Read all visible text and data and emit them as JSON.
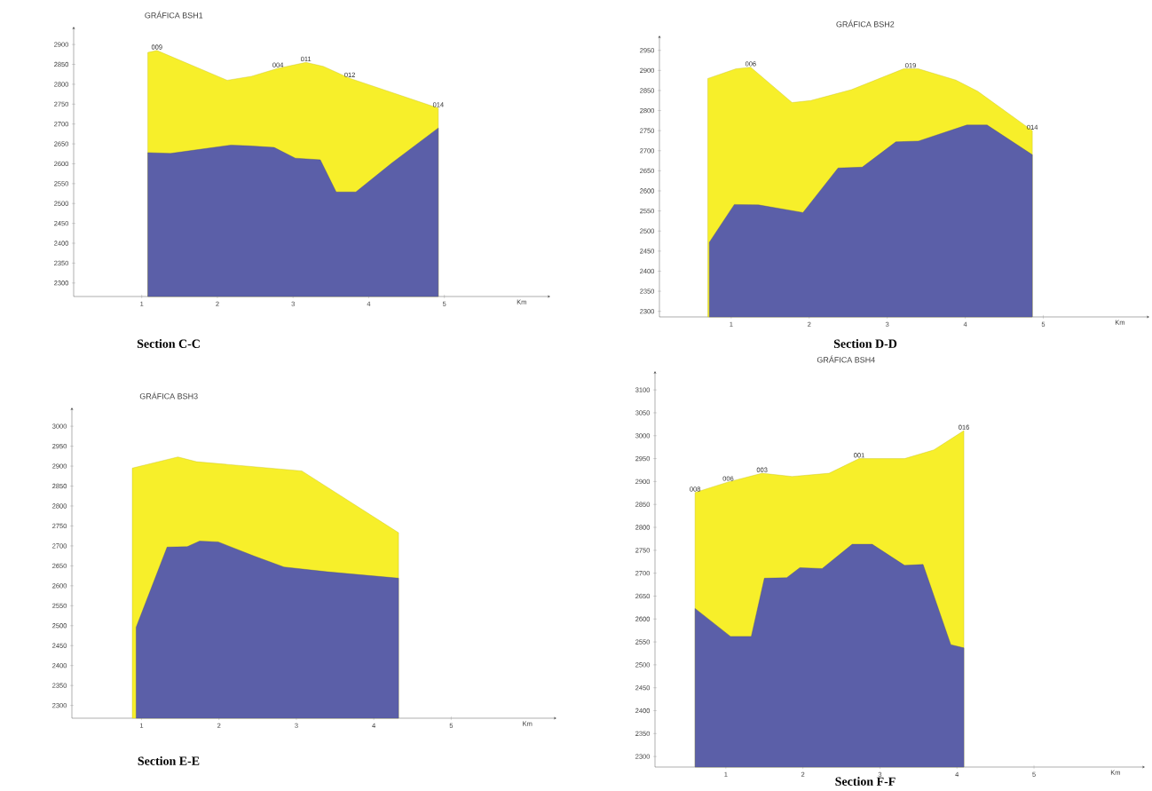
{
  "chart_data": [
    {
      "type": "area",
      "title": "GRÁFICA BSH1",
      "xlabel": "Km",
      "xlim": [
        0.1,
        6.4
      ],
      "ylim": [
        2266,
        2945
      ],
      "xticks": [
        1,
        2,
        3,
        4,
        5
      ],
      "yticks": [
        2300,
        2350,
        2400,
        2450,
        2500,
        2550,
        2600,
        2650,
        2700,
        2750,
        2800,
        2850,
        2900
      ],
      "series": [
        {
          "color": "#f7ef2a",
          "x": [
            1.08,
            1.2,
            2.13,
            2.45,
            2.8,
            3.17,
            3.4,
            3.75,
            4.92
          ],
          "values": [
            2880,
            2885,
            2810,
            2820,
            2840,
            2855,
            2845,
            2815,
            2740
          ]
        },
        {
          "color": "#5b5fa8",
          "x": [
            1.08,
            1.38,
            2.18,
            2.42,
            2.75,
            3.03,
            3.36,
            3.57,
            3.83,
            4.3,
            4.92
          ],
          "values": [
            2628,
            2626,
            2647,
            2645,
            2641,
            2614,
            2610,
            2529,
            2529,
            2601,
            2690
          ]
        }
      ],
      "annotations": [
        "Section C-C",
        {
          "text": "009",
          "x": 1.2,
          "y": 2885
        },
        {
          "text": "004",
          "x": 2.8,
          "y": 2840
        },
        {
          "text": "011",
          "x": 3.17,
          "y": 2855
        },
        {
          "text": "012",
          "x": 3.75,
          "y": 2815
        },
        {
          "text": "014",
          "x": 4.92,
          "y": 2740
        }
      ]
    },
    {
      "type": "area",
      "title": "GRÁFICA BSH2",
      "xlabel": "Km",
      "xlim": [
        0.08,
        6.36
      ],
      "ylim": [
        2286,
        2987
      ],
      "xticks": [
        1,
        2,
        3,
        4,
        5
      ],
      "yticks": [
        2300,
        2350,
        2400,
        2450,
        2500,
        2550,
        2600,
        2650,
        2700,
        2750,
        2800,
        2850,
        2900,
        2950
      ],
      "series": [
        {
          "color": "#f7ef2a",
          "x": [
            0.7,
            1.06,
            1.25,
            1.78,
            2.02,
            2.54,
            3.21,
            3.4,
            3.88,
            4.16,
            4.86
          ],
          "values": [
            2880,
            2904,
            2908,
            2820,
            2825,
            2852,
            2904,
            2904,
            2876,
            2848,
            2750
          ]
        },
        {
          "color": "#5b5fa8",
          "x": [
            0.72,
            1.04,
            1.35,
            1.92,
            2.37,
            2.68,
            3.11,
            3.4,
            4.02,
            4.28,
            4.86
          ],
          "values": [
            2472,
            2566,
            2565,
            2546,
            2657,
            2659,
            2722,
            2724,
            2764,
            2764,
            2690
          ]
        }
      ],
      "annotations": [
        "Section D-D",
        {
          "text": "006",
          "x": 1.25,
          "y": 2908
        },
        {
          "text": "019",
          "x": 3.3,
          "y": 2904
        },
        {
          "text": "014",
          "x": 4.86,
          "y": 2750
        }
      ]
    },
    {
      "type": "area",
      "title": "GRÁFICA BSH3",
      "xlabel": "Km",
      "xlim": [
        0.1,
        6.36
      ],
      "ylim": [
        2268,
        3047
      ],
      "xticks": [
        1,
        2,
        3,
        4,
        5
      ],
      "yticks": [
        2300,
        2350,
        2400,
        2450,
        2500,
        2550,
        2600,
        2650,
        2700,
        2750,
        2800,
        2850,
        2900,
        2950,
        3000
      ],
      "series": [
        {
          "color": "#f7ef2a",
          "x": [
            0.88,
            1.47,
            1.71,
            3.07,
            4.32
          ],
          "values": [
            2895,
            2923,
            2911,
            2888,
            2733
          ]
        },
        {
          "color": "#5b5fa8",
          "x": [
            0.93,
            1.33,
            1.59,
            1.75,
            1.99,
            2.46,
            2.84,
            3.4,
            4.32
          ],
          "values": [
            2496,
            2697,
            2698,
            2712,
            2710,
            2674,
            2647,
            2635,
            2619
          ]
        }
      ],
      "annotations": [
        "Section E-E"
      ]
    },
    {
      "type": "area",
      "title": "GRÁFICA BSH4",
      "xlabel": "Km",
      "xlim": [
        0.08,
        6.44
      ],
      "ylim": [
        2277,
        3141
      ],
      "xticks": [
        1,
        2,
        3,
        4,
        5
      ],
      "yticks": [
        2300,
        2350,
        2400,
        2450,
        2500,
        2550,
        2600,
        2650,
        2700,
        2750,
        2800,
        2850,
        2900,
        2950,
        3000,
        3050,
        3100
      ],
      "series": [
        {
          "color": "#f7ef2a",
          "x": [
            0.6,
            1.03,
            1.47,
            1.86,
            2.34,
            2.73,
            3.32,
            3.7,
            4.09
          ],
          "values": [
            2876,
            2899,
            2918,
            2911,
            2918,
            2950,
            2950,
            2969,
            3011
          ]
        },
        {
          "color": "#5b5fa8",
          "x": [
            0.6,
            1.06,
            1.33,
            1.5,
            1.79,
            1.96,
            2.25,
            2.64,
            2.9,
            3.32,
            3.56,
            3.92,
            4.09
          ],
          "values": [
            2623,
            2562,
            2562,
            2689,
            2690,
            2712,
            2710,
            2763,
            2763,
            2717,
            2719,
            2544,
            2537
          ]
        }
      ],
      "annotations": [
        "Section F-F",
        {
          "text": "008",
          "x": 0.6,
          "y": 2876
        },
        {
          "text": "006",
          "x": 1.03,
          "y": 2899
        },
        {
          "text": "003",
          "x": 1.47,
          "y": 2918
        },
        {
          "text": "001",
          "x": 2.73,
          "y": 2950
        },
        {
          "text": "016",
          "x": 4.09,
          "y": 3011
        }
      ]
    }
  ]
}
